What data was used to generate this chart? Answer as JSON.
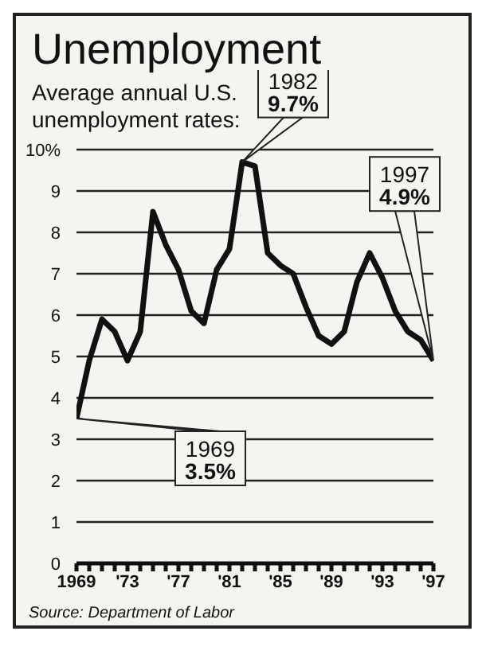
{
  "chart_data": {
    "type": "line",
    "title": "Unemployment",
    "subtitle": "Average annual U.S. unemployment rates:",
    "x": [
      1969,
      1970,
      1971,
      1972,
      1973,
      1974,
      1975,
      1976,
      1977,
      1978,
      1979,
      1980,
      1981,
      1982,
      1983,
      1984,
      1985,
      1986,
      1987,
      1988,
      1989,
      1990,
      1991,
      1992,
      1993,
      1994,
      1995,
      1996,
      1997
    ],
    "series": [
      {
        "color": "#111111",
        "values": [
          3.5,
          4.9,
          5.9,
          5.6,
          4.9,
          5.6,
          8.5,
          7.7,
          7.1,
          6.1,
          5.8,
          7.1,
          7.6,
          9.7,
          9.6,
          7.5,
          7.2,
          7.0,
          6.2,
          5.5,
          5.3,
          5.6,
          6.8,
          7.5,
          6.9,
          6.1,
          5.6,
          5.4,
          4.9
        ]
      }
    ],
    "xlim": [
      1969,
      1997
    ],
    "xticks": [
      {
        "value": 1969,
        "label": "1969"
      },
      {
        "value": 1970,
        "label": null
      },
      {
        "value": 1971,
        "label": null
      },
      {
        "value": 1972,
        "label": null
      },
      {
        "value": 1973,
        "label": "'73"
      },
      {
        "value": 1974,
        "label": null
      },
      {
        "value": 1975,
        "label": null
      },
      {
        "value": 1976,
        "label": null
      },
      {
        "value": 1977,
        "label": "'77"
      },
      {
        "value": 1978,
        "label": null
      },
      {
        "value": 1979,
        "label": null
      },
      {
        "value": 1980,
        "label": null
      },
      {
        "value": 1981,
        "label": "'81"
      },
      {
        "value": 1982,
        "label": null
      },
      {
        "value": 1983,
        "label": null
      },
      {
        "value": 1984,
        "label": null
      },
      {
        "value": 1985,
        "label": "'85"
      },
      {
        "value": 1986,
        "label": null
      },
      {
        "value": 1987,
        "label": null
      },
      {
        "value": 1988,
        "label": null
      },
      {
        "value": 1989,
        "label": "'89"
      },
      {
        "value": 1990,
        "label": null
      },
      {
        "value": 1991,
        "label": null
      },
      {
        "value": 1992,
        "label": null
      },
      {
        "value": 1993,
        "label": "'93"
      },
      {
        "value": 1994,
        "label": null
      },
      {
        "value": 1995,
        "label": null
      },
      {
        "value": 1996,
        "label": null
      },
      {
        "value": 1997,
        "label": "'97"
      }
    ],
    "ylim": [
      0,
      10
    ],
    "yticks": [
      0,
      1,
      2,
      3,
      4,
      5,
      6,
      7,
      8,
      9,
      {
        "value": 10,
        "label": "10%"
      }
    ],
    "grid": "y",
    "marker": "none",
    "line_style": "solid",
    "annotations": [
      {
        "text": "1982 9.7%",
        "x": 1982,
        "y": 9.7
      },
      {
        "text": "1997 4.9%",
        "x": 1997,
        "y": 4.9
      },
      {
        "text": "1969 3.5%",
        "x": 1969,
        "y": 3.5
      },
      "Source: Department of Labor"
    ]
  }
}
